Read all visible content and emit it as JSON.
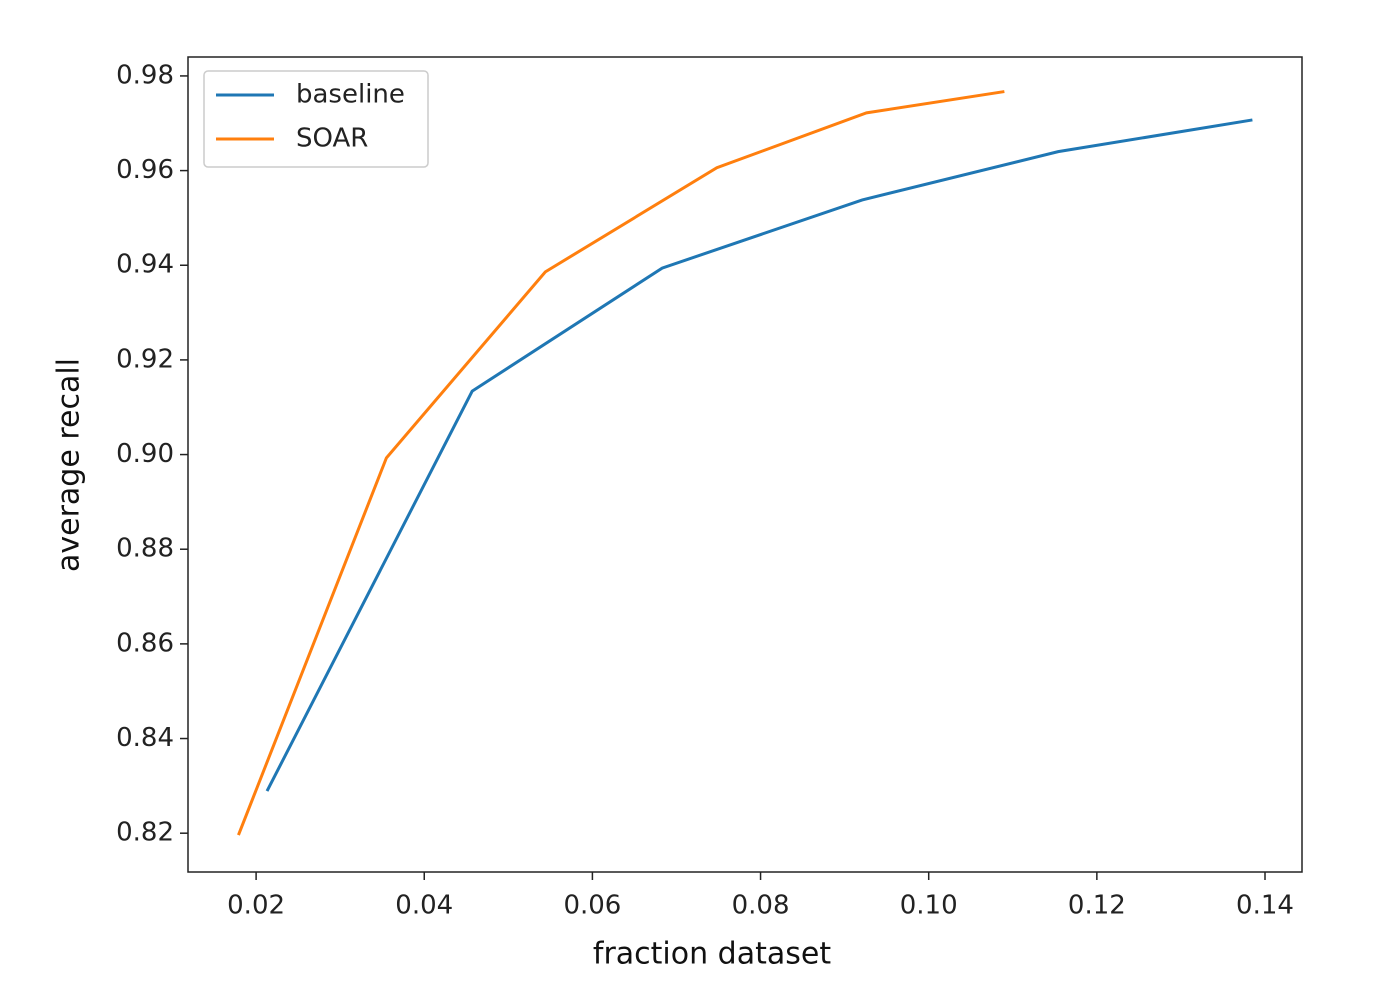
{
  "chart_data": {
    "type": "line",
    "xlabel": "fraction dataset",
    "ylabel": "average recall",
    "xlim": [
      0.0119,
      0.1444
    ],
    "ylim": [
      0.8118,
      0.984
    ],
    "xticks": [
      0.02,
      0.04,
      0.06,
      0.08,
      {
        "value": 0.1,
        "label": "0.10"
      },
      0.12,
      0.14
    ],
    "yticks": [
      0.82,
      0.84,
      0.86,
      0.88,
      {
        "value": 0.9,
        "label": "0.90"
      },
      0.92,
      0.94,
      0.96,
      0.98
    ],
    "legend": "upper left",
    "series": [
      {
        "name": "baseline",
        "color": "#1f77b4",
        "x": [
          0.0213,
          0.0457,
          0.0683,
          0.0921,
          0.1154,
          0.1385
        ],
        "values": [
          0.8289,
          0.9134,
          0.9394,
          0.9538,
          0.964,
          0.9707
        ]
      },
      {
        "name": "SOAR",
        "color": "#ff7f0e",
        "x": [
          0.0179,
          0.0355,
          0.0544,
          0.0748,
          0.0926,
          0.109
        ],
        "values": [
          0.8196,
          0.8993,
          0.9386,
          0.9606,
          0.9722,
          0.9767
        ]
      }
    ]
  }
}
